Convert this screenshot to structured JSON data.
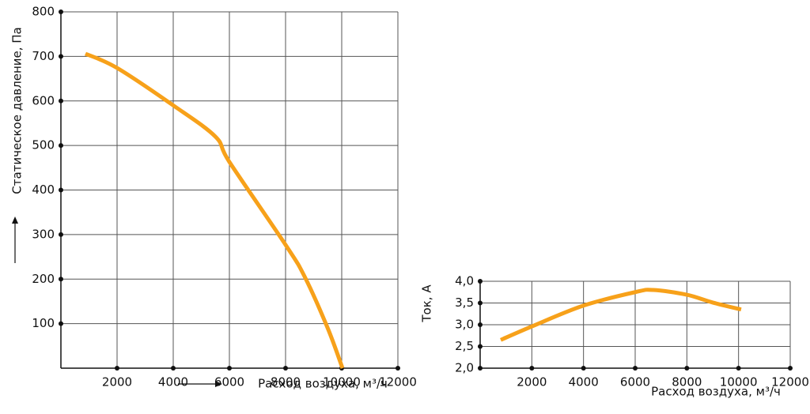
{
  "chart_data": [
    {
      "type": "line",
      "y_label": "Статическое давление, Па",
      "x_label": "Расход воздуха, м³/ч",
      "x": [
        873,
        2000,
        4000,
        5500,
        6000,
        8000,
        8676,
        9500,
        10028
      ],
      "series": [
        {
          "color": "#f7a11a",
          "values": [
            706,
            674,
            590,
            520,
            463,
            277,
            206,
            90,
            0
          ]
        }
      ],
      "xlim": [
        0,
        12000
      ],
      "xticks": [
        2000,
        4000,
        6000,
        8000,
        10000,
        12000
      ],
      "ylim": [
        0,
        800
      ],
      "yticks": [
        100,
        200,
        300,
        400,
        500,
        600,
        700,
        800
      ],
      "grid": true
    },
    {
      "type": "line",
      "y_label": "Ток, А",
      "x_label": "Расход воздуха, м³/ч",
      "x": [
        796,
        2000,
        4000,
        6000,
        6700,
        8000,
        9000,
        10100
      ],
      "series": [
        {
          "color": "#f7a11a",
          "values": [
            2.65,
            2.96,
            3.44,
            3.75,
            3.8,
            3.69,
            3.51,
            3.35
          ]
        }
      ],
      "xlim": [
        0,
        12000
      ],
      "xticks": [
        2000,
        4000,
        6000,
        8000,
        10000,
        12000
      ],
      "ylim": [
        2,
        4
      ],
      "yticks": [
        {
          "value": 2,
          "label": "2,0"
        },
        {
          "value": 2.5,
          "label": "2,5"
        },
        {
          "value": 3,
          "label": "3,0"
        },
        {
          "value": 3.5,
          "label": "3,5"
        },
        {
          "value": 4,
          "label": "4,0"
        }
      ],
      "grid": true
    }
  ]
}
